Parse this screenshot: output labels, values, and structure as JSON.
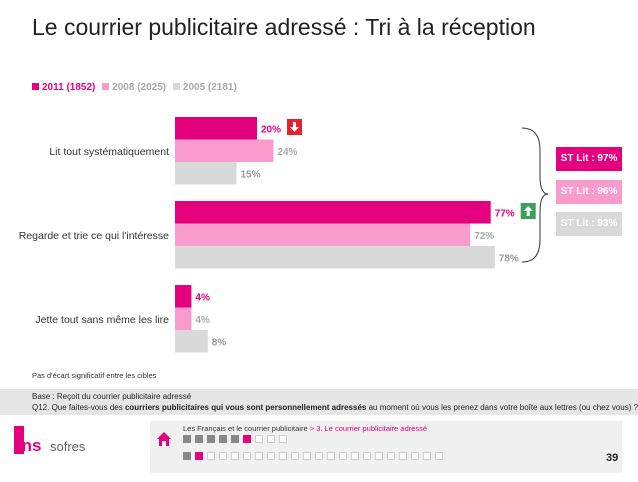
{
  "title": "Le courrier publicitaire adressé : Tri à la réception",
  "colors": {
    "s2011": "#e5007e",
    "s2008": "#f99ccd",
    "s2005": "#d9d9d9",
    "label2011": "#e5007e",
    "label2008": "#aaaaaa",
    "label2005": "#999999",
    "down": "#e8202a",
    "up": "#3d9f5a"
  },
  "chart_data": {
    "type": "bar",
    "orientation": "horizontal",
    "categories": [
      "Lit tout systématiquement",
      "Regarde et trie ce qui l'intéresse",
      "Jette tout sans même les lire"
    ],
    "series": [
      {
        "name": "2011 (1852)",
        "values": [
          20,
          77,
          4
        ]
      },
      {
        "name": "2008 (2025)",
        "values": [
          24,
          72,
          4
        ]
      },
      {
        "name": "2005 (2181)",
        "values": [
          15,
          78,
          8
        ]
      }
    ],
    "value_labels": [
      [
        "20%",
        "24%",
        "15%"
      ],
      [
        "77%",
        "72%",
        "78%"
      ],
      [
        "4%",
        "4%",
        "8%"
      ]
    ],
    "xlim": [
      0,
      100
    ],
    "unit": "%",
    "legend_position": "top-left",
    "significance": [
      {
        "category": "Lit tout systématiquement",
        "direction": "down"
      },
      {
        "category": "Regarde et trie ce qui l'intéresse",
        "direction": "up"
      }
    ],
    "subtotals": [
      {
        "label": "ST Lit : 97%",
        "series": "2011 (1852)"
      },
      {
        "label": "ST Lit : 96%",
        "series": "2008 (2025)"
      },
      {
        "label": "ST Lit : 93%",
        "series": "2005 (2181)"
      }
    ]
  },
  "note": "Pas d'écart significatif entre les cibles",
  "base": {
    "line1": "Base : Reçoit du courrier publicitaire adressé",
    "line2_pre": "Q12. Que faites-vous des ",
    "line2_bold": "courriers publicitaires qui vous sont personnellement adressés",
    "line2_post": " au moment où vous les prenez dans votre boîte aux lettres (ou chez vous) ?"
  },
  "footer": {
    "logo": "tns sofres",
    "breadcrumb_main": "Les Français et le courrier publicitaire",
    "breadcrumb_sep": " > ",
    "breadcrumb_current": "3. Le courrier publicitaire adressé",
    "page_number": "39"
  }
}
